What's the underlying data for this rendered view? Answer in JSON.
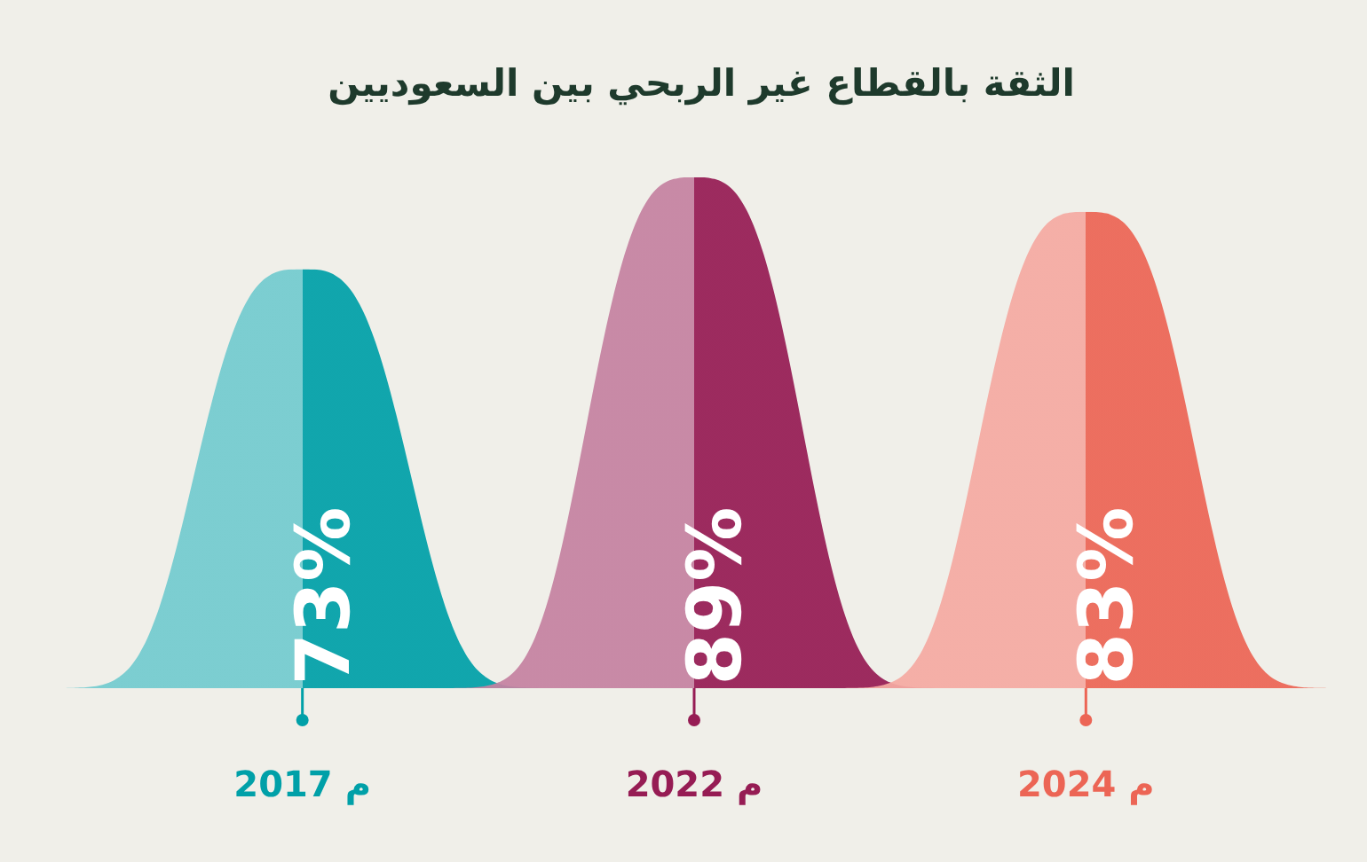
{
  "chart_data": {
    "type": "bar",
    "title": "الثقة بالقطاع غير الربحي بين السعوديين",
    "categories": [
      "2017 م",
      "2022 م",
      "2024 م"
    ],
    "values": [
      73,
      89,
      83
    ],
    "value_labels": [
      "73%",
      "89%",
      "83%"
    ],
    "colors": [
      "#00a0a8",
      "#961c54",
      "#ec6555"
    ]
  }
}
